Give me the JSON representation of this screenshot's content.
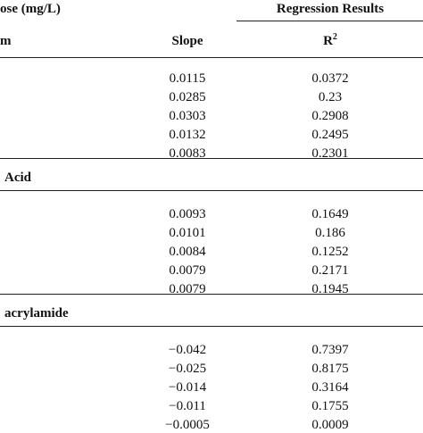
{
  "header": {
    "group_label": "ose (mg/L)",
    "results_label": "Regression Results",
    "term_label": "m",
    "slope_label": "Slope",
    "r_label": "R",
    "r_superscript": "2"
  },
  "sections": [
    {
      "label": null,
      "rows": [
        [
          "0.0115",
          "0.0372"
        ],
        [
          "0.0285",
          "0.23"
        ],
        [
          "0.0303",
          "0.2908"
        ],
        [
          "0.0132",
          "0.2495"
        ],
        [
          "0.0083",
          "0.2301"
        ]
      ]
    },
    {
      "label": "Acid",
      "rows": [
        [
          "0.0093",
          "0.1649"
        ],
        [
          "0.0101",
          "0.186"
        ],
        [
          "0.0084",
          "0.1252"
        ],
        [
          "0.0079",
          "0.2171"
        ],
        [
          "0.0079",
          "0.1945"
        ]
      ]
    },
    {
      "label": "acrylamide",
      "rows": [
        [
          "−0.042",
          "0.7397"
        ],
        [
          "−0.025",
          "0.8175"
        ],
        [
          "−0.014",
          "0.3164"
        ],
        [
          "−0.011",
          "0.1755"
        ],
        [
          "−0.0005",
          "0.0009"
        ]
      ]
    }
  ]
}
